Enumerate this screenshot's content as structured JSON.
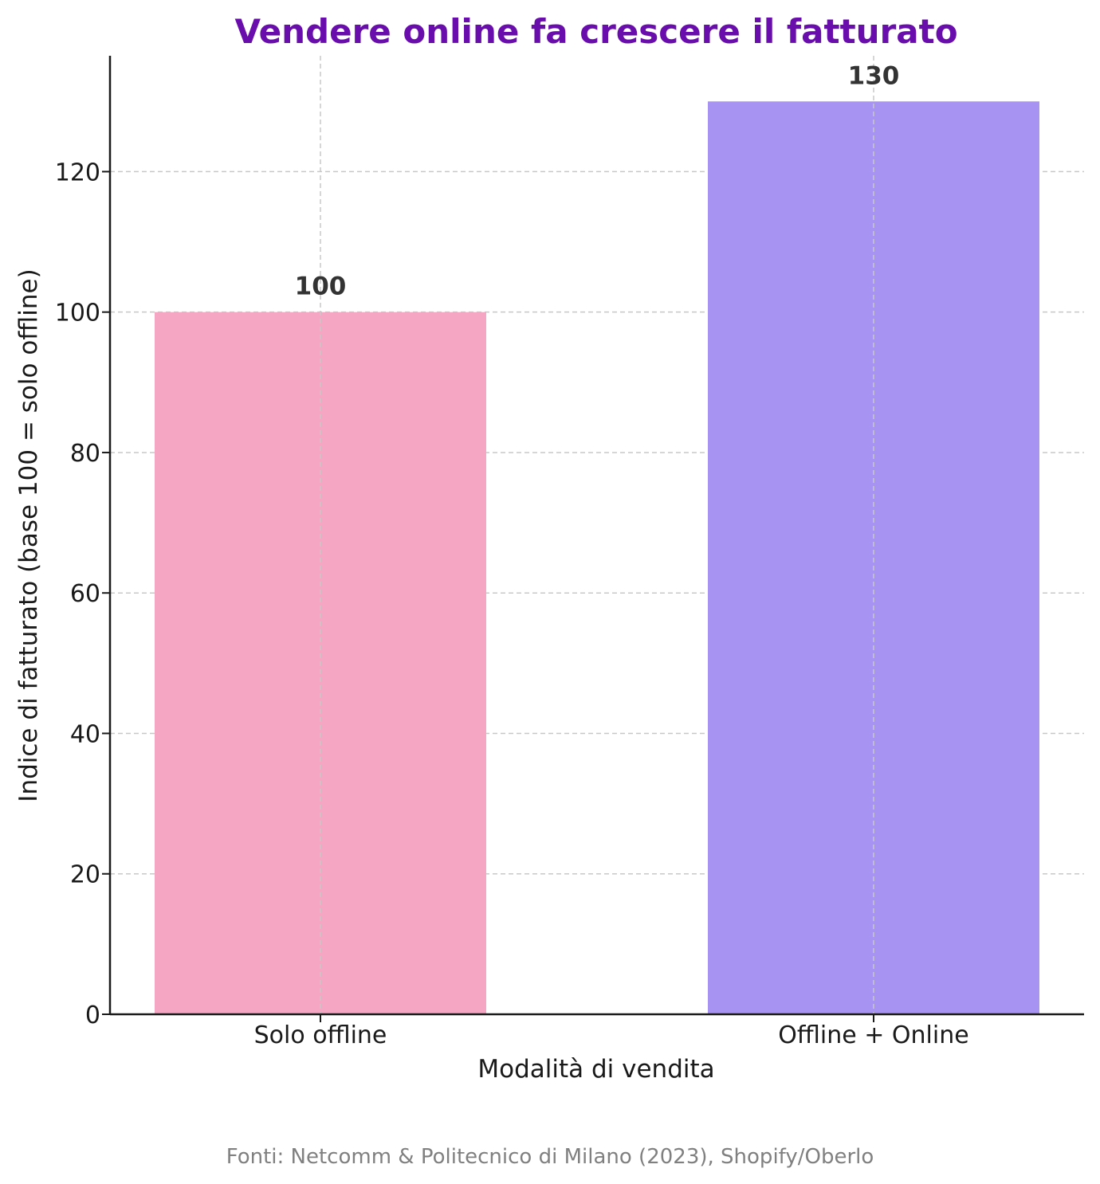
{
  "chart_data": {
    "type": "bar",
    "title": "Vendere online fa crescere il fatturato",
    "xlabel": "Modalità di vendita",
    "ylabel": "Indice di fatturato (base 100 = solo offline)",
    "categories": [
      "Solo offline",
      "Offline + Online"
    ],
    "values": [
      100,
      130
    ],
    "value_labels": [
      "100",
      "130"
    ],
    "bar_colors": [
      "#f4a6c3",
      "#a793f2"
    ],
    "ylim": [
      0,
      136.5
    ],
    "yticks": [
      0,
      20,
      40,
      60,
      80,
      100,
      120
    ],
    "grid": true,
    "source": "Fonti: Netcomm & Politecnico di Milano (2023), Shopify/Oberlo"
  },
  "colors": {
    "title": "#6a0dad",
    "grid": "#c8c8c8",
    "axis": "#1a1a1a"
  }
}
